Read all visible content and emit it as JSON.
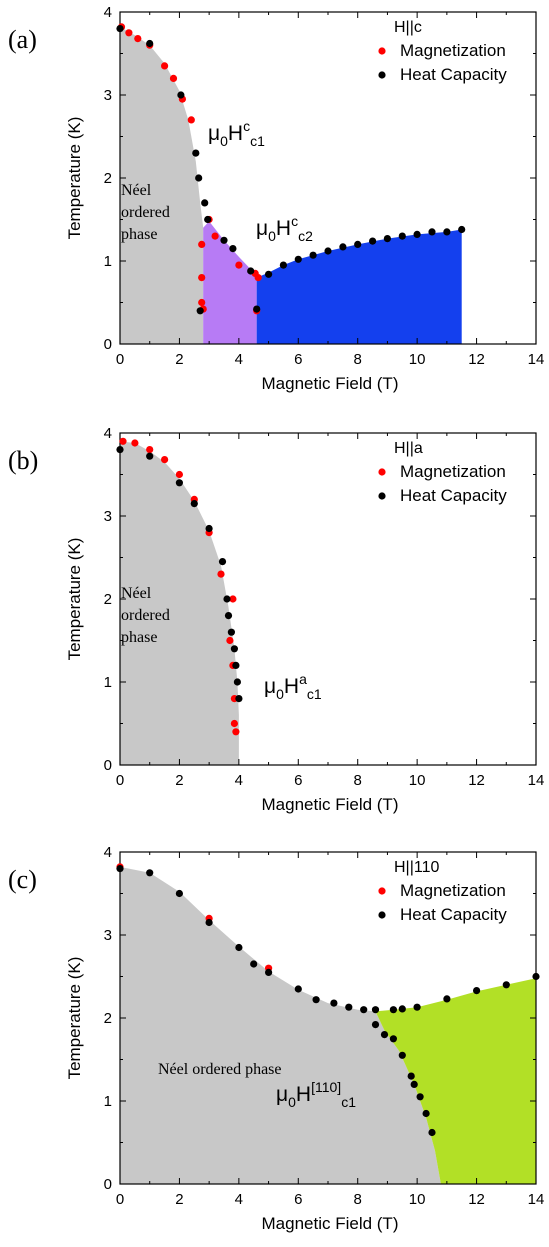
{
  "chart_data": [
    {
      "panel": "(a)",
      "type": "scatter",
      "xlabel": "Magnetic Field (T)",
      "ylabel": "Temperature (K)",
      "xlim": [
        0,
        14
      ],
      "ylim": [
        0,
        4
      ],
      "xticks": [
        "0",
        "2",
        "4",
        "6",
        "8",
        "10",
        "12",
        "14"
      ],
      "yticks": [
        "0",
        "1",
        "2",
        "3",
        "4"
      ],
      "legend_title": "H||c",
      "legend_position": "top-right",
      "series": [
        {
          "name": "Magnetization",
          "color": "#ff0000",
          "points": [
            [
              0.05,
              3.82
            ],
            [
              0.3,
              3.75
            ],
            [
              0.6,
              3.68
            ],
            [
              1.0,
              3.6
            ],
            [
              1.5,
              3.35
            ],
            [
              1.8,
              3.2
            ],
            [
              2.1,
              2.95
            ],
            [
              2.4,
              2.7
            ],
            [
              2.75,
              1.2
            ],
            [
              2.75,
              0.8
            ],
            [
              2.75,
              0.5
            ],
            [
              2.8,
              0.42
            ],
            [
              3.0,
              1.5
            ],
            [
              3.2,
              1.3
            ],
            [
              4.0,
              0.95
            ],
            [
              4.55,
              0.85
            ],
            [
              4.65,
              0.8
            ],
            [
              4.6,
              0.4
            ]
          ]
        },
        {
          "name": "Heat Capacity",
          "color": "#000000",
          "points": [
            [
              0.0,
              3.8
            ],
            [
              1.0,
              3.62
            ],
            [
              2.05,
              3.0
            ],
            [
              2.55,
              2.3
            ],
            [
              2.65,
              2.0
            ],
            [
              2.85,
              1.7
            ],
            [
              2.95,
              1.5
            ],
            [
              3.5,
              1.25
            ],
            [
              3.8,
              1.15
            ],
            [
              4.4,
              0.88
            ],
            [
              4.6,
              0.42
            ],
            [
              5.0,
              0.84
            ],
            [
              5.5,
              0.95
            ],
            [
              6.0,
              1.02
            ],
            [
              6.5,
              1.07
            ],
            [
              7.0,
              1.12
            ],
            [
              7.5,
              1.17
            ],
            [
              8.0,
              1.2
            ],
            [
              8.5,
              1.24
            ],
            [
              9.0,
              1.27
            ],
            [
              9.5,
              1.3
            ],
            [
              10.0,
              1.32
            ],
            [
              10.5,
              1.35
            ],
            [
              11.0,
              1.35
            ],
            [
              11.5,
              1.38
            ],
            [
              2.7,
              0.4
            ]
          ]
        }
      ],
      "regions": [
        {
          "label": "Néel ordered phase",
          "color": "#c8c8c8"
        },
        {
          "color": "#b77bf5"
        },
        {
          "color": "#1440ee"
        }
      ],
      "annotations": {
        "region_label_lines": [
          "Néel",
          "ordered",
          "phase"
        ],
        "field_1": {
          "base": "μ",
          "sub0": "0",
          "main": "H",
          "sup": "c",
          "sub": "c1"
        },
        "field_2": {
          "base": "μ",
          "sub0": "0",
          "main": "H",
          "sup": "c",
          "sub": "c2"
        }
      }
    },
    {
      "panel": "(b)",
      "type": "scatter",
      "xlabel": "Magnetic Field (T)",
      "ylabel": "Temperature (K)",
      "xlim": [
        0,
        14
      ],
      "ylim": [
        0,
        4
      ],
      "xticks": [
        "0",
        "2",
        "4",
        "6",
        "8",
        "10",
        "12",
        "14"
      ],
      "yticks": [
        "0",
        "1",
        "2",
        "3",
        "4"
      ],
      "legend_title": "H||a",
      "legend_position": "top-right",
      "series": [
        {
          "name": "Magnetization",
          "color": "#ff0000",
          "points": [
            [
              0.1,
              3.9
            ],
            [
              0.5,
              3.88
            ],
            [
              1.0,
              3.8
            ],
            [
              1.5,
              3.68
            ],
            [
              2.0,
              3.5
            ],
            [
              2.5,
              3.2
            ],
            [
              3.0,
              2.8
            ],
            [
              3.4,
              2.3
            ],
            [
              3.7,
              1.5
            ],
            [
              3.8,
              2.0
            ],
            [
              3.8,
              1.2
            ],
            [
              3.85,
              0.8
            ],
            [
              3.85,
              0.5
            ],
            [
              3.9,
              0.4
            ]
          ]
        },
        {
          "name": "Heat Capacity",
          "color": "#000000",
          "points": [
            [
              0.0,
              3.8
            ],
            [
              1.0,
              3.72
            ],
            [
              2.0,
              3.4
            ],
            [
              2.5,
              3.15
            ],
            [
              3.0,
              2.85
            ],
            [
              3.45,
              2.45
            ],
            [
              3.6,
              2.0
            ],
            [
              3.65,
              1.8
            ],
            [
              3.75,
              1.6
            ],
            [
              3.85,
              1.4
            ],
            [
              3.9,
              1.2
            ],
            [
              3.95,
              1.0
            ],
            [
              4.0,
              0.8
            ]
          ]
        }
      ],
      "regions": [
        {
          "label": "Néel ordered phase",
          "color": "#c8c8c8"
        }
      ],
      "annotations": {
        "region_label_lines": [
          "Néel",
          "ordered",
          "phase"
        ],
        "field_1": {
          "base": "μ",
          "sub0": "0",
          "main": "H",
          "sup": "a",
          "sub": "c1"
        }
      }
    },
    {
      "panel": "(c)",
      "type": "scatter",
      "xlabel": "Magnetic Field (T)",
      "ylabel": "Temperature (K)",
      "xlim": [
        0,
        14
      ],
      "ylim": [
        0,
        4
      ],
      "xticks": [
        "0",
        "2",
        "4",
        "6",
        "8",
        "10",
        "12",
        "14"
      ],
      "yticks": [
        "0",
        "1",
        "2",
        "3",
        "4"
      ],
      "legend_title": "H||110",
      "legend_position": "top-right",
      "series": [
        {
          "name": "Magnetization",
          "color": "#ff0000",
          "points": [
            [
              0.0,
              3.82
            ],
            [
              3.0,
              3.2
            ],
            [
              5.0,
              2.6
            ]
          ]
        },
        {
          "name": "Heat Capacity",
          "color": "#000000",
          "points": [
            [
              0.0,
              3.8
            ],
            [
              1.0,
              3.75
            ],
            [
              2.0,
              3.5
            ],
            [
              3.0,
              3.15
            ],
            [
              4.0,
              2.85
            ],
            [
              4.5,
              2.65
            ],
            [
              5.0,
              2.55
            ],
            [
              6.0,
              2.35
            ],
            [
              6.6,
              2.22
            ],
            [
              7.2,
              2.18
            ],
            [
              7.7,
              2.13
            ],
            [
              8.2,
              2.1
            ],
            [
              8.6,
              2.1
            ],
            [
              9.2,
              2.1
            ],
            [
              9.5,
              2.11
            ],
            [
              10.0,
              2.13
            ],
            [
              11.0,
              2.23
            ],
            [
              12.0,
              2.33
            ],
            [
              13.0,
              2.4
            ],
            [
              14.0,
              2.5
            ],
            [
              8.6,
              1.92
            ],
            [
              8.9,
              1.8
            ],
            [
              9.2,
              1.75
            ],
            [
              9.5,
              1.55
            ],
            [
              9.8,
              1.3
            ],
            [
              9.9,
              1.2
            ],
            [
              10.1,
              1.05
            ],
            [
              10.3,
              0.85
            ],
            [
              10.5,
              0.62
            ]
          ]
        }
      ],
      "regions": [
        {
          "label": "Néel ordered phase",
          "color": "#c8c8c8"
        },
        {
          "color": "#b2e026"
        }
      ],
      "annotations": {
        "region_label_lines": [
          "Néel  ordered phase"
        ],
        "field_1": {
          "base": "μ",
          "sub0": "0",
          "main": "H",
          "sup": "[110]",
          "sub": "c1"
        }
      }
    }
  ]
}
